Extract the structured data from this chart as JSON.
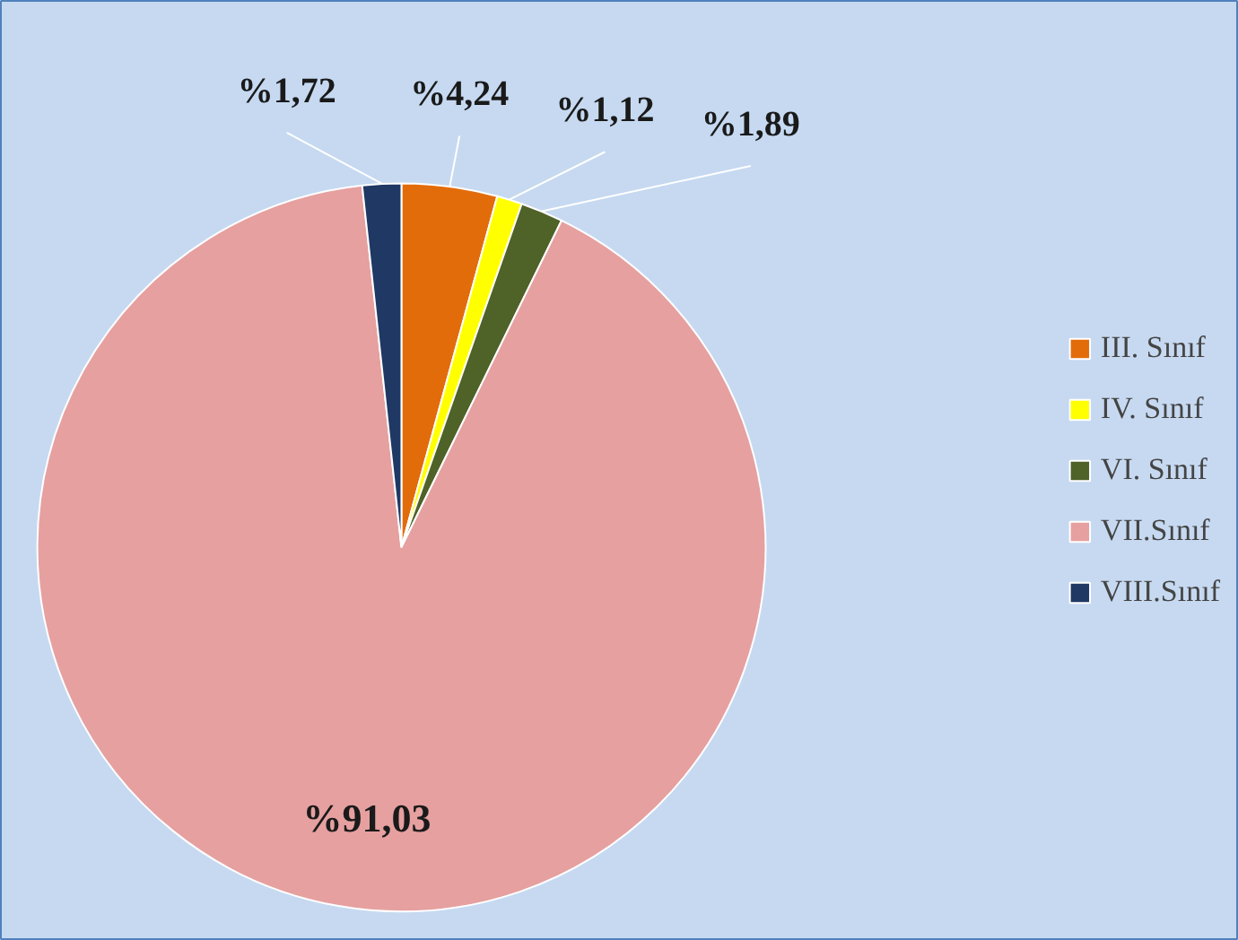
{
  "chart_data": {
    "type": "pie",
    "categories": [
      "III. Sınıf",
      "IV. Sınıf",
      "VI. Sınıf",
      "VII.Sınıf",
      "VIII.Sınıf"
    ],
    "values": [
      4.24,
      1.12,
      1.89,
      91.03,
      1.72
    ],
    "colors": [
      "#e36c0a",
      "#ffff00",
      "#4f6228",
      "#e6a0a0",
      "#1f3864"
    ],
    "value_labels": [
      "%4,24",
      "%1,12",
      "%1,89",
      "%91,03",
      "%1,72"
    ],
    "legend": "right"
  }
}
